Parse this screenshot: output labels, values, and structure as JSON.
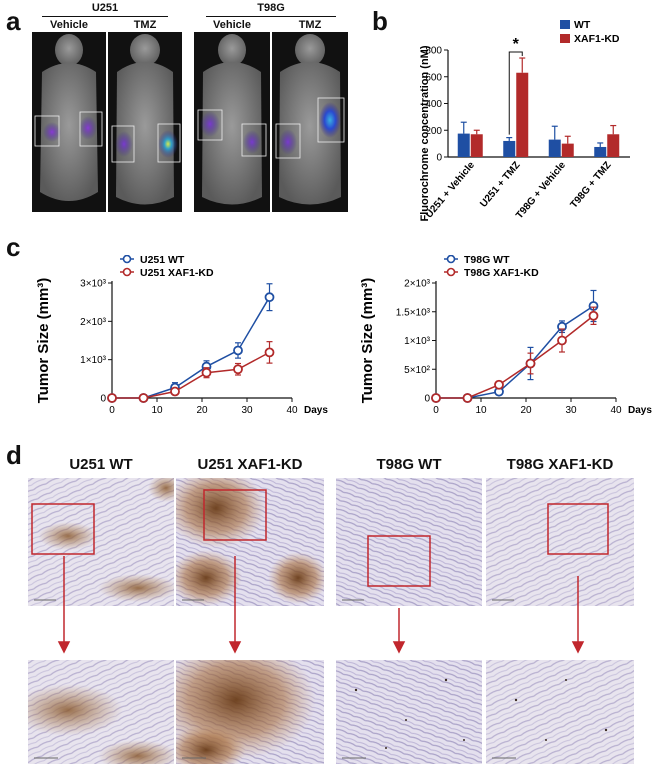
{
  "panel_a": {
    "letter": "a",
    "groups": [
      {
        "name": "U251",
        "conditions": [
          "Vehicle",
          "TMZ"
        ]
      },
      {
        "name": "T98G",
        "conditions": [
          "Vehicle",
          "TMZ"
        ]
      }
    ]
  },
  "panel_b": {
    "letter": "b"
  },
  "panel_c": {
    "letter": "c",
    "days_label": "Days"
  },
  "panel_d": {
    "letter": "d",
    "titles": [
      "U251 WT",
      "U251 XAF1-KD",
      "T98G WT",
      "T98G XAF1-KD"
    ]
  },
  "colors": {
    "blue": "#1f4fa3",
    "red": "#b22a2a",
    "box": "#c1272d"
  },
  "chart_data": [
    {
      "type": "bar",
      "ylabel": "Fluorochrome concentration (nM)",
      "ylim": [
        0,
        800
      ],
      "yticks": [
        0,
        200,
        400,
        600,
        800
      ],
      "categories": [
        "U251 + Vehicle",
        "U251 + TMZ",
        "T98G + Vehicle",
        "T98G + TMZ"
      ],
      "series": [
        {
          "name": "WT",
          "values": [
            175,
            120,
            130,
            75
          ],
          "errors": [
            85,
            25,
            100,
            30
          ]
        },
        {
          "name": "XAF1-KD",
          "values": [
            170,
            630,
            100,
            170
          ],
          "errors": [
            30,
            110,
            55,
            65
          ]
        }
      ],
      "annotation": "*",
      "legend": "top-right"
    },
    {
      "type": "line",
      "ylabel": "Tumor Size (mm³)",
      "xlabel": "Days",
      "xlim": [
        0,
        40
      ],
      "xticks": [
        0,
        10,
        20,
        30,
        40
      ],
      "ylim": [
        0,
        3000
      ],
      "yticks": [
        0,
        1000,
        2000,
        3000
      ],
      "ytick_labels": [
        "0",
        "1×10³",
        "2×10³",
        "3×10³"
      ],
      "x": [
        0,
        7,
        14,
        21,
        28,
        35
      ],
      "series": [
        {
          "name": "U251 WT",
          "values": [
            0,
            0,
            270,
            820,
            1240,
            2630
          ],
          "errors": [
            0,
            0,
            130,
            150,
            200,
            350
          ]
        },
        {
          "name": "U251 XAF1-KD",
          "values": [
            0,
            0,
            170,
            660,
            750,
            1190
          ],
          "errors": [
            0,
            0,
            60,
            130,
            150,
            280
          ]
        }
      ],
      "legend": "top-left"
    },
    {
      "type": "line",
      "ylabel": "Tumor Size (mm³)",
      "xlabel": "Days",
      "xlim": [
        0,
        40
      ],
      "xticks": [
        0,
        10,
        20,
        30,
        40
      ],
      "ylim": [
        0,
        2000
      ],
      "yticks": [
        0,
        500,
        1000,
        1500,
        2000
      ],
      "ytick_labels": [
        "0",
        "5×10²",
        "1×10³",
        "1.5×10³",
        "2×10³"
      ],
      "x": [
        0,
        7,
        14,
        21,
        28,
        35
      ],
      "series": [
        {
          "name": "T98G WT",
          "values": [
            0,
            0,
            110,
            600,
            1240,
            1600
          ],
          "errors": [
            0,
            0,
            50,
            280,
            100,
            270
          ]
        },
        {
          "name": "T98G XAF1-KD",
          "values": [
            0,
            0,
            230,
            600,
            1000,
            1430
          ],
          "errors": [
            0,
            0,
            60,
            180,
            200,
            150
          ]
        }
      ],
      "legend": "top-left"
    }
  ]
}
